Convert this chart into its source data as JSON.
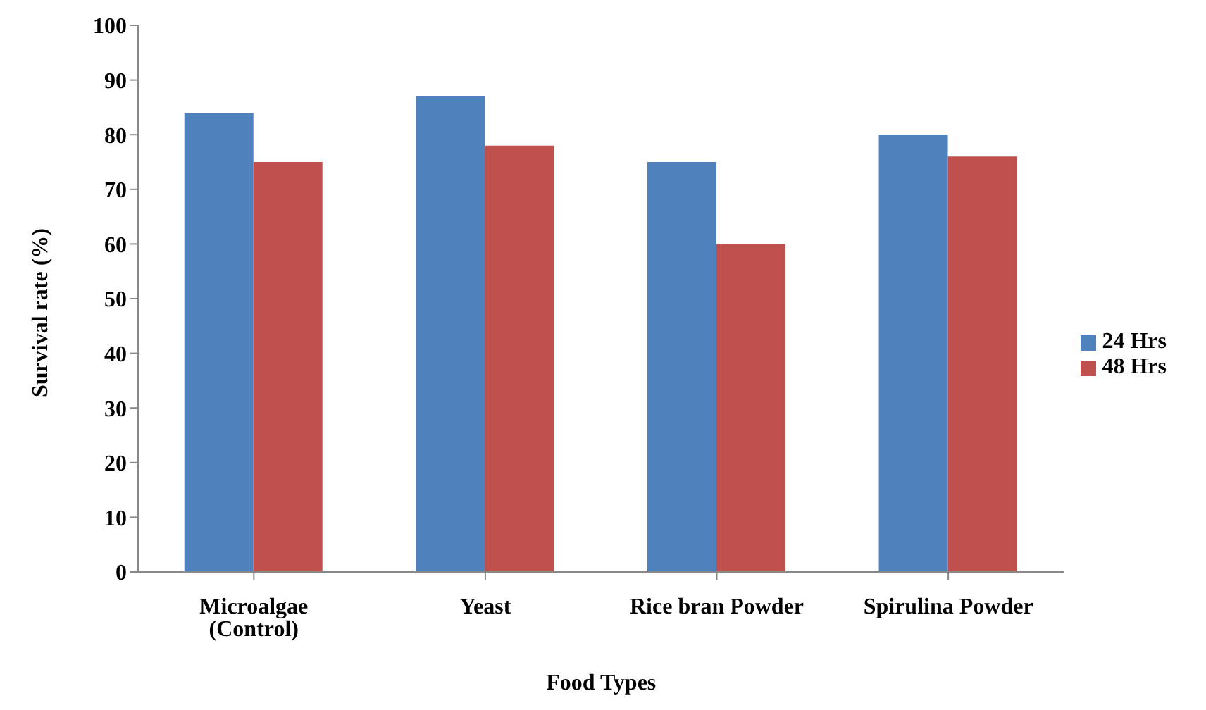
{
  "chart_data": {
    "type": "bar",
    "xlabel": "Food Types",
    "ylabel": "Survival rate (%)",
    "categories": [
      "Microalgae (Control)",
      "Yeast",
      "Rice bran Powder",
      "Spirulina Powder"
    ],
    "series": [
      {
        "name": "24 Hrs",
        "color": "#4f81bd",
        "values": [
          84,
          87,
          75,
          80
        ]
      },
      {
        "name": "48 Hrs",
        "color": "#c0504d",
        "values": [
          75,
          78,
          60,
          76
        ]
      }
    ],
    "ylim": [
      0,
      100
    ],
    "yticks": [
      0,
      10,
      20,
      30,
      40,
      50,
      60,
      70,
      80,
      90,
      100
    ],
    "grid": false,
    "legend": "right"
  }
}
